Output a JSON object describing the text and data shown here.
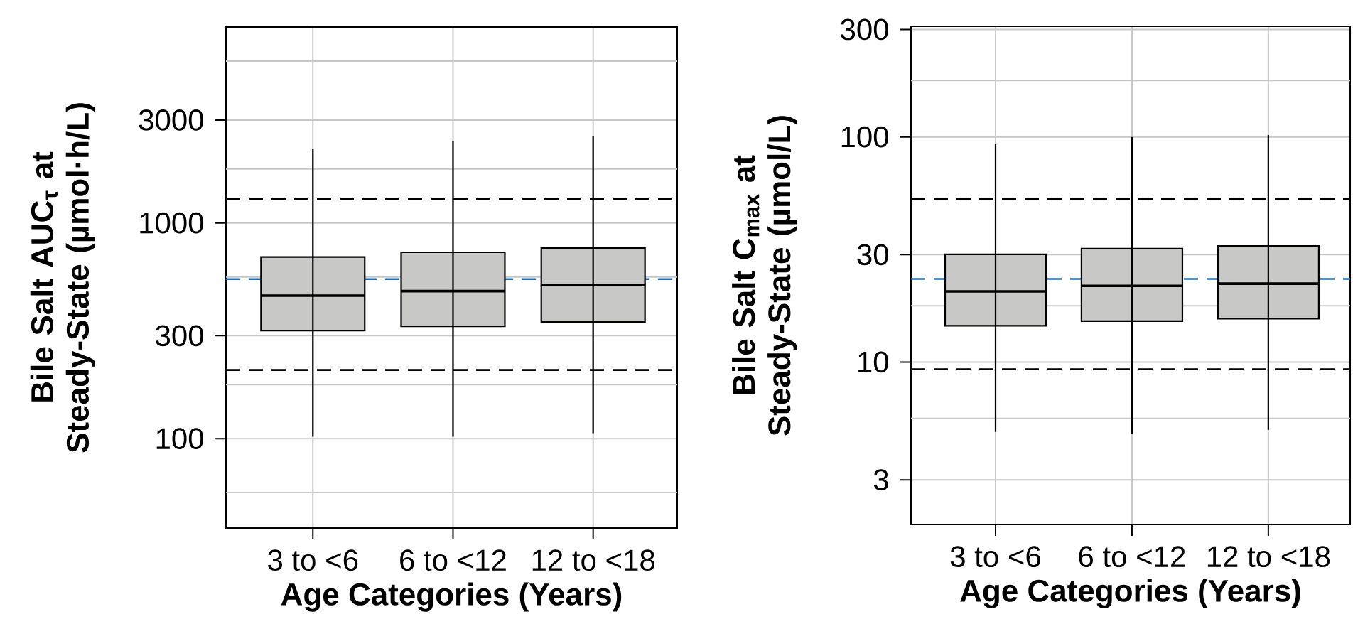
{
  "chart_data": [
    {
      "type": "box",
      "categories": [
        "3 to <6",
        "6 to <12",
        "12 to <18"
      ],
      "series": [
        {
          "color": "#c8c9c6",
          "boxes": [
            {
              "low": 102,
              "q1": 317,
              "median": 460,
              "q3": 695,
              "high": 2210
            },
            {
              "low": 102,
              "q1": 332,
              "median": 483,
              "q3": 731,
              "high": 2400
            },
            {
              "low": 106,
              "q1": 348,
              "median": 515,
              "q3": 766,
              "high": 2520
            }
          ]
        }
      ],
      "xlabel": "Age Categories (Years)",
      "ylabel": "Bile Salt AUC$_{τ}$ at Steady-State (µmol·h/L)",
      "log": true,
      "ylim": [
        38.5,
        8100
      ],
      "yticks": [
        {
          "value": 56.2,
          "label": null
        },
        100,
        {
          "value": 178,
          "label": null
        },
        300,
        {
          "value": 562,
          "label": null
        },
        1000,
        {
          "value": 1778,
          "label": null
        },
        3000,
        {
          "value": 5623,
          "label": null
        }
      ],
      "grid": true,
      "ref_lines": [
        {
          "axis": "y",
          "value": 1288,
          "color": "#000000",
          "line_style": "dashed"
        },
        {
          "axis": "y",
          "value": 208,
          "color": "#000000",
          "line_style": "dashed"
        },
        {
          "axis": "y",
          "value": 549,
          "color": "#1f6db5",
          "line_style": "dashed"
        }
      ]
    },
    {
      "type": "box",
      "categories": [
        "3 to <6",
        "6 to <12",
        "12 to <18"
      ],
      "series": [
        {
          "color": "#c8c9c6",
          "boxes": [
            {
              "low": 4.9,
              "q1": 14.5,
              "median": 20.6,
              "q3": 30.1,
              "high": 93
            },
            {
              "low": 4.8,
              "q1": 15.2,
              "median": 21.8,
              "q3": 31.9,
              "high": 100
            },
            {
              "low": 5.0,
              "q1": 15.6,
              "median": 22.3,
              "q3": 32.8,
              "high": 102
            }
          ]
        }
      ],
      "xlabel": "Age Categories (Years)",
      "ylabel": "Bile Salt C$_{max}$ at Steady-State (µmol/L)",
      "log": true,
      "ylim": [
        1.9,
        310
      ],
      "yticks": [
        3,
        {
          "value": 5.62,
          "label": null
        },
        10,
        {
          "value": 17.8,
          "label": null
        },
        30,
        100,
        {
          "value": 178,
          "label": null
        },
        300
      ],
      "grid": true,
      "ref_lines": [
        {
          "axis": "y",
          "value": 53,
          "color": "#000000",
          "line_style": "dashed"
        },
        {
          "axis": "y",
          "value": 9.3,
          "color": "#000000",
          "line_style": "dashed"
        },
        {
          "axis": "y",
          "value": 23.4,
          "color": "#1f6db5",
          "line_style": "dashed"
        }
      ]
    }
  ]
}
